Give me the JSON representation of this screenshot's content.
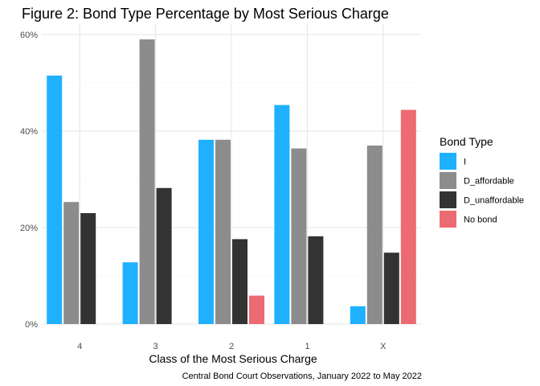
{
  "chart_data": {
    "type": "bar",
    "title": "Figure 2: Bond Type Percentage by Most Serious Charge",
    "xlabel": "Class of the Most Serious Charge",
    "ylabel": "",
    "caption": "Central Bond Court Observations, January 2022 to May 2022",
    "categories": [
      "4",
      "3",
      "2",
      "1",
      "X"
    ],
    "ylim": [
      0,
      62
    ],
    "yticks": [
      0,
      20,
      40,
      60
    ],
    "ytick_labels": [
      "0%",
      "20%",
      "40%",
      "60%"
    ],
    "grid": true,
    "legend_title": "Bond Type",
    "legend_position": "right",
    "series": [
      {
        "name": "I",
        "color": "#1fb1ff",
        "values": [
          51.5,
          12.8,
          38.2,
          45.4,
          3.7
        ]
      },
      {
        "name": "D_affordable",
        "color": "#8c8c8c",
        "values": [
          25.3,
          59.0,
          38.2,
          36.4,
          37.0
        ]
      },
      {
        "name": "D_unaffordable",
        "color": "#333333",
        "values": [
          23.0,
          28.2,
          17.6,
          18.2,
          14.8
        ]
      },
      {
        "name": "No bond",
        "color": "#ec6b72",
        "values": [
          null,
          null,
          5.9,
          null,
          44.4
        ]
      }
    ]
  }
}
